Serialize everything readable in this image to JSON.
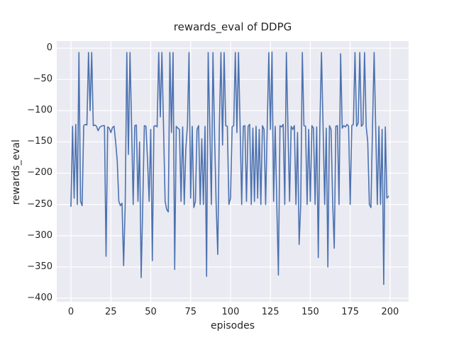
{
  "figure": {
    "background": "#ffffff"
  },
  "chart_data": {
    "type": "line",
    "title": "rewards_eval of DDPG",
    "xlabel": "episodes",
    "ylabel": "rewards_eval",
    "legend": "none",
    "grid": true,
    "plot_bg": "#eaeaf2",
    "grid_color": "#ffffff",
    "line_color": "#4c72b0",
    "text_color": "#262626",
    "xlim": [
      -8.9,
      211.6
    ],
    "ylim": [
      -405.7,
      11.3
    ],
    "xticks": [
      0,
      25,
      50,
      75,
      100,
      125,
      150,
      175,
      200
    ],
    "yticks": [
      0,
      -50,
      -100,
      -150,
      -200,
      -250,
      -300,
      -350,
      -400
    ],
    "x_start": 0,
    "x_step": 1,
    "values": [
      -253,
      -125,
      -240,
      -122,
      -250,
      -7,
      -245,
      -252,
      -124,
      -122,
      -123,
      -7,
      -100,
      -7,
      -124,
      -123,
      -125,
      -132,
      -127,
      -125,
      -124,
      -124,
      -333,
      -126,
      -128,
      -135,
      -127,
      -125,
      -150,
      -180,
      -245,
      -252,
      -248,
      -348,
      -250,
      -7,
      -170,
      -7,
      -124,
      -250,
      -124,
      -123,
      -245,
      -150,
      -367,
      -250,
      -124,
      -125,
      -180,
      -245,
      -130,
      -340,
      -125,
      -124,
      -126,
      -7,
      -110,
      -7,
      -124,
      -245,
      -258,
      -262,
      -7,
      -135,
      -7,
      -354,
      -125,
      -128,
      -130,
      -245,
      -126,
      -250,
      -160,
      -124,
      -7,
      -240,
      -125,
      -255,
      -245,
      -130,
      -124,
      -250,
      -145,
      -250,
      -125,
      -365,
      -7,
      -124,
      -250,
      -7,
      -140,
      -250,
      -330,
      -125,
      -7,
      -155,
      -7,
      -124,
      -125,
      -250,
      -240,
      -126,
      -124,
      -7,
      -135,
      -7,
      -124,
      -250,
      -125,
      -124,
      -245,
      -125,
      -122,
      -250,
      -128,
      -245,
      -125,
      -240,
      -130,
      -250,
      -124,
      -130,
      -250,
      -126,
      -7,
      -130,
      -6,
      -245,
      -125,
      -250,
      -363,
      -124,
      -126,
      -122,
      -250,
      -7,
      -128,
      -245,
      -125,
      -130,
      -124,
      -250,
      -135,
      -314,
      -250,
      -7,
      -124,
      -125,
      -250,
      -130,
      -245,
      -124,
      -128,
      -250,
      -126,
      -335,
      -124,
      -7,
      -125,
      -250,
      -128,
      -350,
      -124,
      -130,
      -245,
      -320,
      -125,
      -124,
      -250,
      -9,
      -128,
      -124,
      -126,
      -122,
      -125,
      -250,
      -124,
      -122,
      -7,
      -125,
      -120,
      -7,
      -125,
      -122,
      -7,
      -125,
      -150,
      -250,
      -255,
      -124,
      -7,
      -130,
      -250,
      -125,
      -250,
      -130,
      -378,
      -126,
      -240,
      -237
    ]
  }
}
